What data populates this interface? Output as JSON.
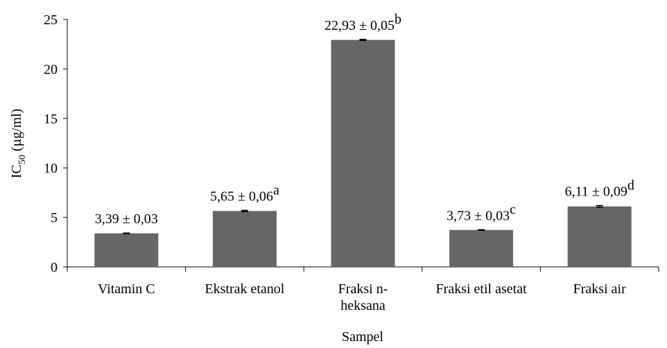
{
  "chart_data": {
    "type": "bar",
    "categories": [
      "Vitamin C",
      "Ekstrak etanol",
      "Fraksi n-\nheksana",
      "Fraksi etil asetat",
      "Fraksi air"
    ],
    "values": [
      3.39,
      5.65,
      22.93,
      3.73,
      6.11
    ],
    "errors": [
      0.03,
      0.06,
      0.05,
      0.03,
      0.09
    ],
    "value_labels": [
      "3,39 ± 0,03",
      "5,65 ± 0,06",
      "22,93 ± 0,05",
      "3,73 ± 0,03",
      "6,11 ± 0,09"
    ],
    "value_label_superscripts": [
      null,
      "a",
      "b",
      "c",
      "d"
    ],
    "color": "#666666",
    "ylim": [
      0,
      25
    ],
    "yticks": [
      0,
      5,
      10,
      15,
      20,
      25
    ],
    "ylabel": {
      "main": "IC",
      "sub": "50",
      "unit": " (µg/ml)"
    },
    "xlabel": "Sampel"
  }
}
